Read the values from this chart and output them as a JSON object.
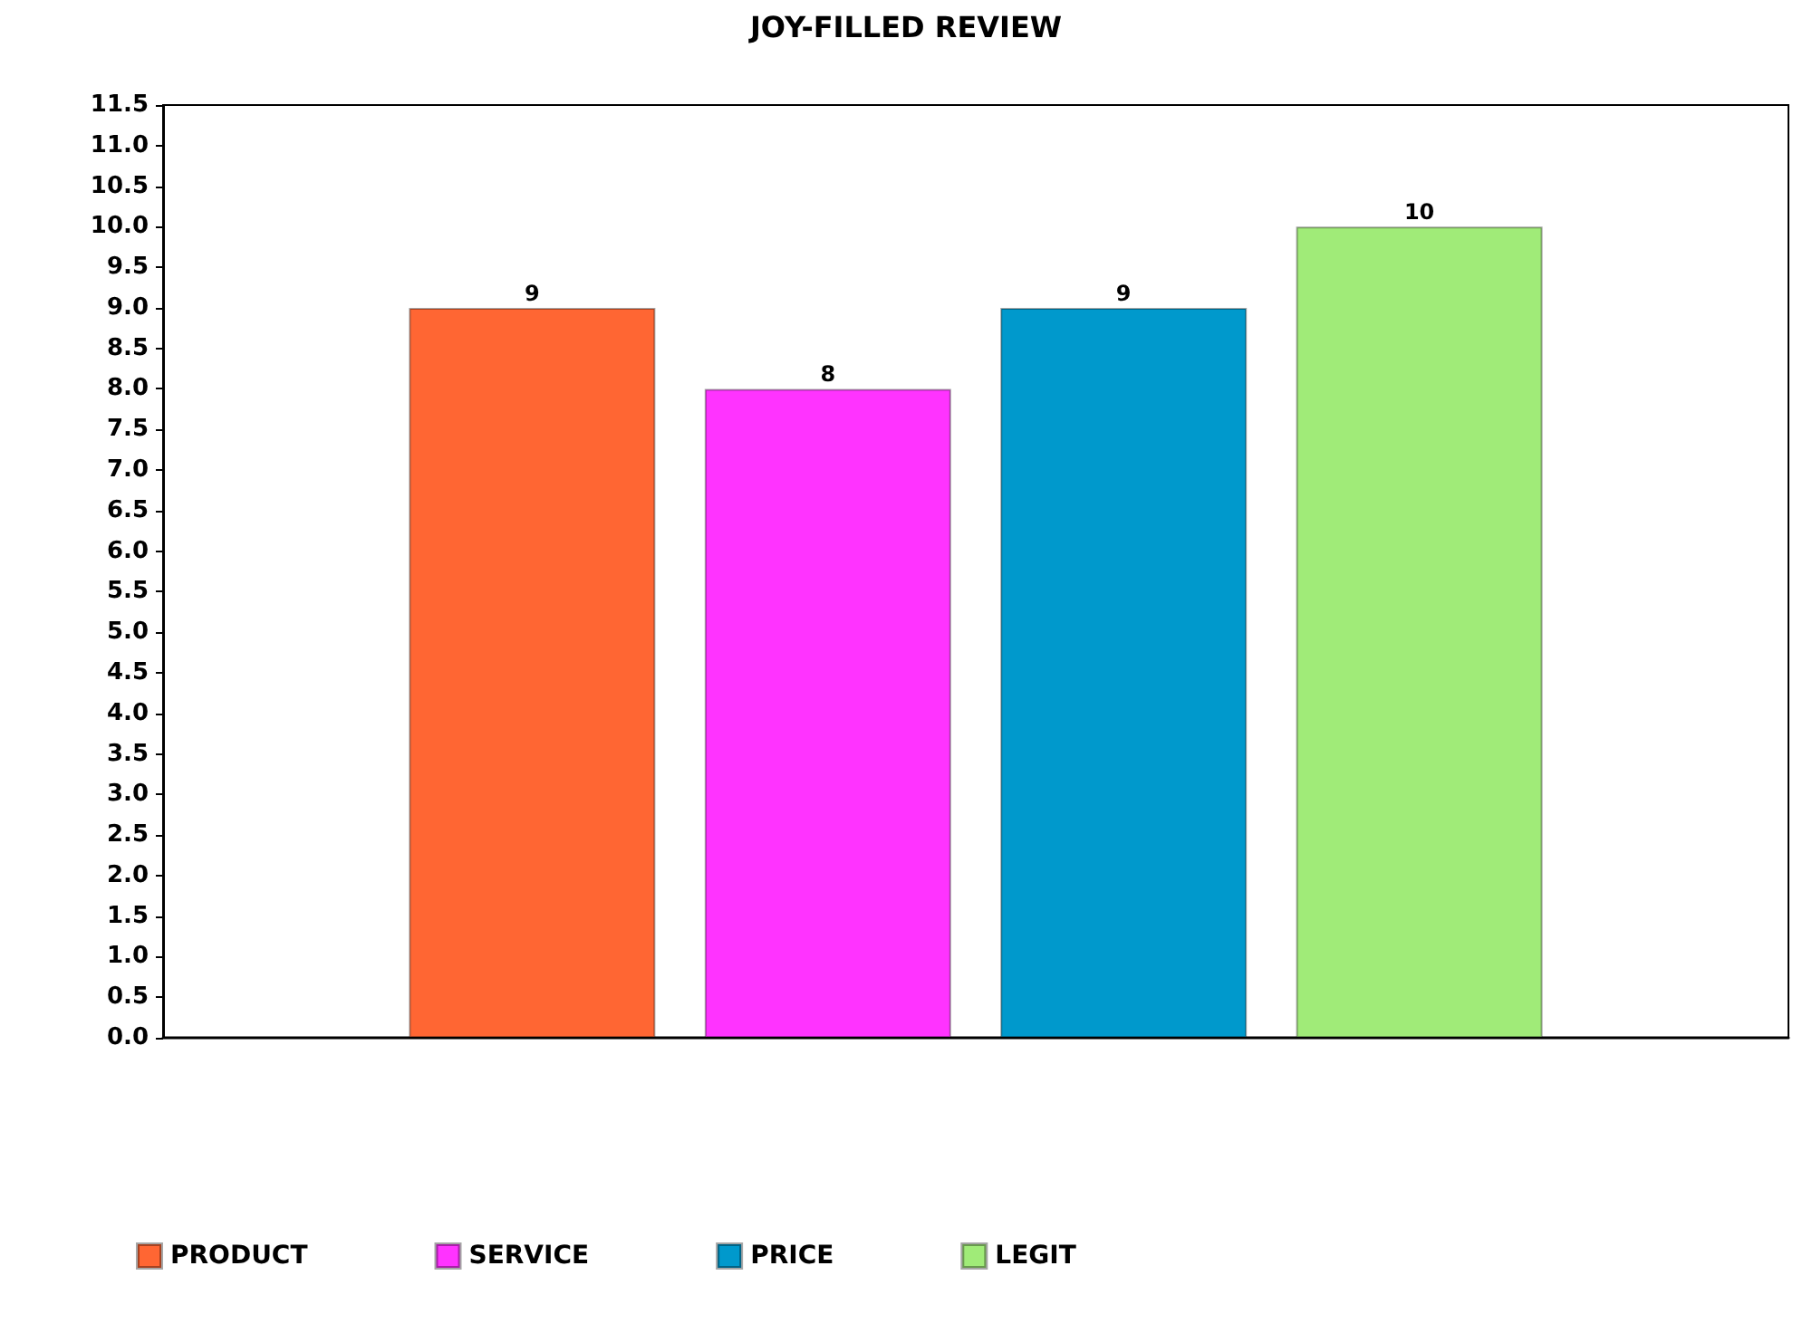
{
  "chart_data": {
    "type": "bar",
    "title": "JOY-FILLED REVIEW",
    "categories": [
      null
    ],
    "series": [
      {
        "name": "PRODUCT",
        "color": "#ff6633",
        "values": [
          9
        ]
      },
      {
        "name": "SERVICE",
        "color": "#ff33ff",
        "values": [
          8
        ]
      },
      {
        "name": "PRICE",
        "color": "#0099cc",
        "values": [
          9
        ]
      },
      {
        "name": "LEGIT",
        "color": "#a0eb78",
        "values": [
          10
        ]
      }
    ],
    "ylim": [
      0,
      11.5
    ],
    "yticks": [
      {
        "value": 0,
        "label": "0.0"
      },
      {
        "value": 0.5,
        "label": "0.5"
      },
      {
        "value": 1,
        "label": "1.0"
      },
      {
        "value": 1.5,
        "label": "1.5"
      },
      {
        "value": 2,
        "label": "2.0"
      },
      {
        "value": 2.5,
        "label": "2.5"
      },
      {
        "value": 3,
        "label": "3.0"
      },
      {
        "value": 3.5,
        "label": "3.5"
      },
      {
        "value": 4,
        "label": "4.0"
      },
      {
        "value": 4.5,
        "label": "4.5"
      },
      {
        "value": 5,
        "label": "5.0"
      },
      {
        "value": 5.5,
        "label": "5.5"
      },
      {
        "value": 6,
        "label": "6.0"
      },
      {
        "value": 6.5,
        "label": "6.5"
      },
      {
        "value": 7,
        "label": "7.0"
      },
      {
        "value": 7.5,
        "label": "7.5"
      },
      {
        "value": 8,
        "label": "8.0"
      },
      {
        "value": 8.5,
        "label": "8.5"
      },
      {
        "value": 9,
        "label": "9.0"
      },
      {
        "value": 9.5,
        "label": "9.5"
      },
      {
        "value": 10,
        "label": "10.0"
      },
      {
        "value": 10.5,
        "label": "10.5"
      },
      {
        "value": 11,
        "label": "11.0"
      },
      {
        "value": 11.5,
        "label": "11.5"
      }
    ],
    "grid": false,
    "legend": "bottom left",
    "data_labels": true
  }
}
